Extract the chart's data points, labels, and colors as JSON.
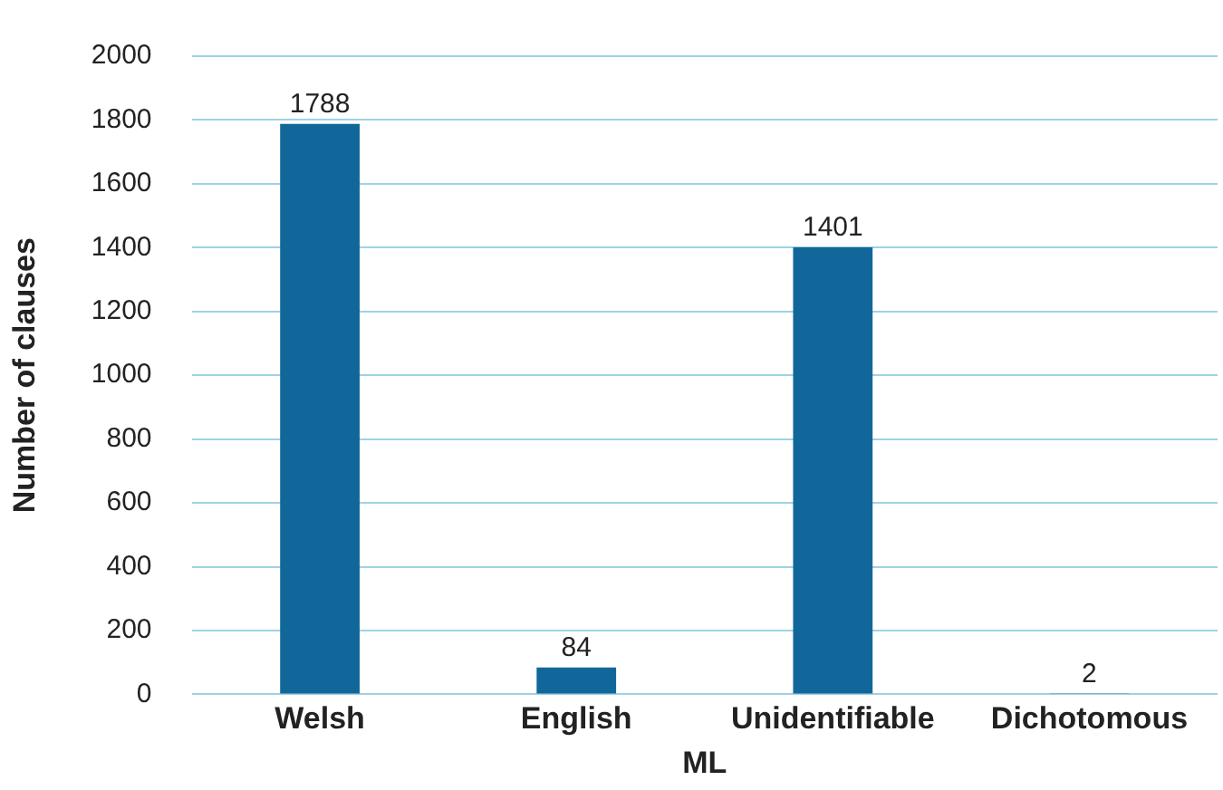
{
  "chart_data": {
    "type": "bar",
    "xlabel": "ML",
    "ylabel": "Number of clauses",
    "categories": [
      "Welsh",
      "English",
      "Unidentifiable",
      "Dichotomous"
    ],
    "values": [
      1788,
      84,
      1401,
      2
    ],
    "color": "#12679a",
    "ylim": [
      0,
      2000
    ],
    "yticks": [
      0,
      200,
      400,
      600,
      800,
      1000,
      1200,
      1400,
      1600,
      1800,
      2000
    ],
    "grid": "y",
    "data_labels": true,
    "legend": false
  }
}
